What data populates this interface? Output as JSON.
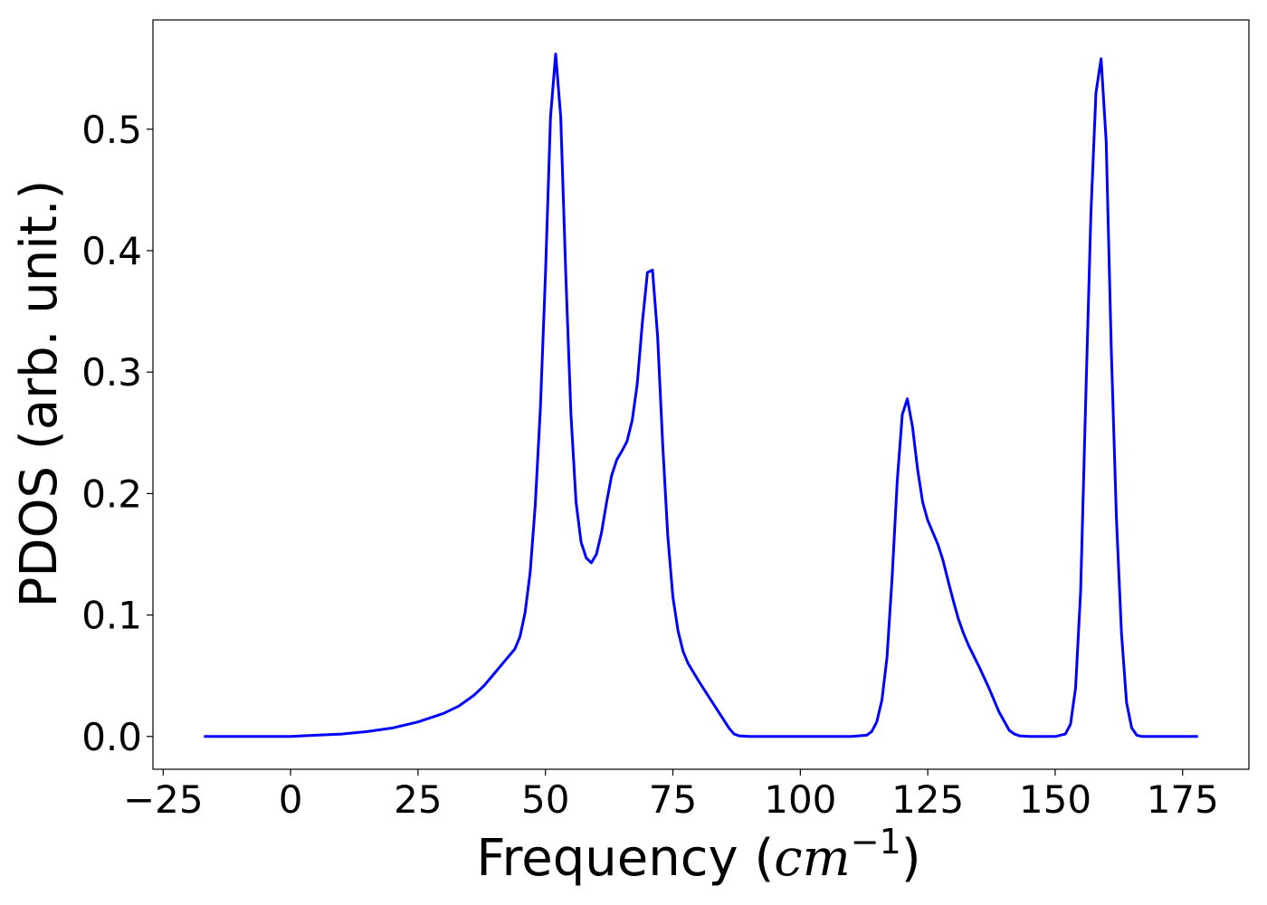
{
  "chart_data": {
    "type": "line",
    "xlabel": "Frequency (cm⁻¹)",
    "xlabel_parts": {
      "prefix": "Frequency (",
      "unit": "cm",
      "exponent": "−1",
      "suffix": ")"
    },
    "ylabel": "PDOS (arb. unit.)",
    "xlim": [
      -27,
      188
    ],
    "ylim": [
      -0.027,
      0.59
    ],
    "x_ticks": [
      -25,
      0,
      25,
      50,
      75,
      100,
      125,
      150,
      175
    ],
    "x_tick_labels": [
      "−25",
      "0",
      "25",
      "50",
      "75",
      "100",
      "125",
      "150",
      "175"
    ],
    "y_ticks": [
      0.0,
      0.1,
      0.2,
      0.3,
      0.4,
      0.5
    ],
    "y_tick_labels": [
      "0.0",
      "0.1",
      "0.2",
      "0.3",
      "0.4",
      "0.5"
    ],
    "grid": false,
    "line_color": "#0000ff",
    "series": [
      {
        "x": [
          -17,
          -10,
          0,
          5,
          10,
          15,
          20,
          25,
          30,
          33,
          36,
          38,
          40,
          42,
          44,
          45,
          46,
          47,
          48,
          49,
          50,
          51,
          52,
          53,
          54,
          55,
          56,
          57,
          58,
          59,
          60,
          61,
          62,
          63,
          64,
          65,
          66,
          67,
          68,
          69,
          70,
          71,
          72,
          73,
          74,
          75,
          76,
          77,
          78,
          80,
          82,
          84,
          86,
          87,
          88,
          90,
          95,
          100,
          105,
          110,
          113,
          114,
          115,
          116,
          117,
          118,
          119,
          120,
          121,
          122,
          123,
          124,
          125,
          126,
          127,
          128,
          129,
          130,
          131,
          132,
          133,
          135,
          137,
          139,
          141,
          142,
          143,
          145,
          150,
          152,
          153,
          154,
          155,
          156,
          157,
          158,
          159,
          160,
          161,
          162,
          163,
          164,
          165,
          166,
          167,
          170,
          178
        ],
        "y": [
          0.0,
          0.0,
          0.0,
          0.001,
          0.002,
          0.004,
          0.007,
          0.012,
          0.019,
          0.025,
          0.034,
          0.042,
          0.052,
          0.062,
          0.072,
          0.082,
          0.102,
          0.135,
          0.19,
          0.27,
          0.38,
          0.51,
          0.562,
          0.51,
          0.38,
          0.265,
          0.193,
          0.16,
          0.147,
          0.143,
          0.15,
          0.168,
          0.193,
          0.215,
          0.228,
          0.235,
          0.243,
          0.26,
          0.29,
          0.34,
          0.382,
          0.384,
          0.33,
          0.24,
          0.165,
          0.115,
          0.087,
          0.07,
          0.06,
          0.046,
          0.033,
          0.02,
          0.007,
          0.002,
          0.0005,
          0.0,
          0.0,
          0.0,
          0.0,
          0.0,
          0.001,
          0.004,
          0.012,
          0.03,
          0.065,
          0.13,
          0.21,
          0.265,
          0.278,
          0.255,
          0.22,
          0.193,
          0.178,
          0.168,
          0.158,
          0.145,
          0.128,
          0.112,
          0.097,
          0.085,
          0.075,
          0.058,
          0.04,
          0.02,
          0.005,
          0.002,
          0.0005,
          0.0,
          0.0,
          0.002,
          0.01,
          0.04,
          0.12,
          0.28,
          0.43,
          0.53,
          0.558,
          0.49,
          0.32,
          0.18,
          0.085,
          0.028,
          0.007,
          0.001,
          0.0,
          0.0,
          0.0
        ]
      }
    ]
  }
}
